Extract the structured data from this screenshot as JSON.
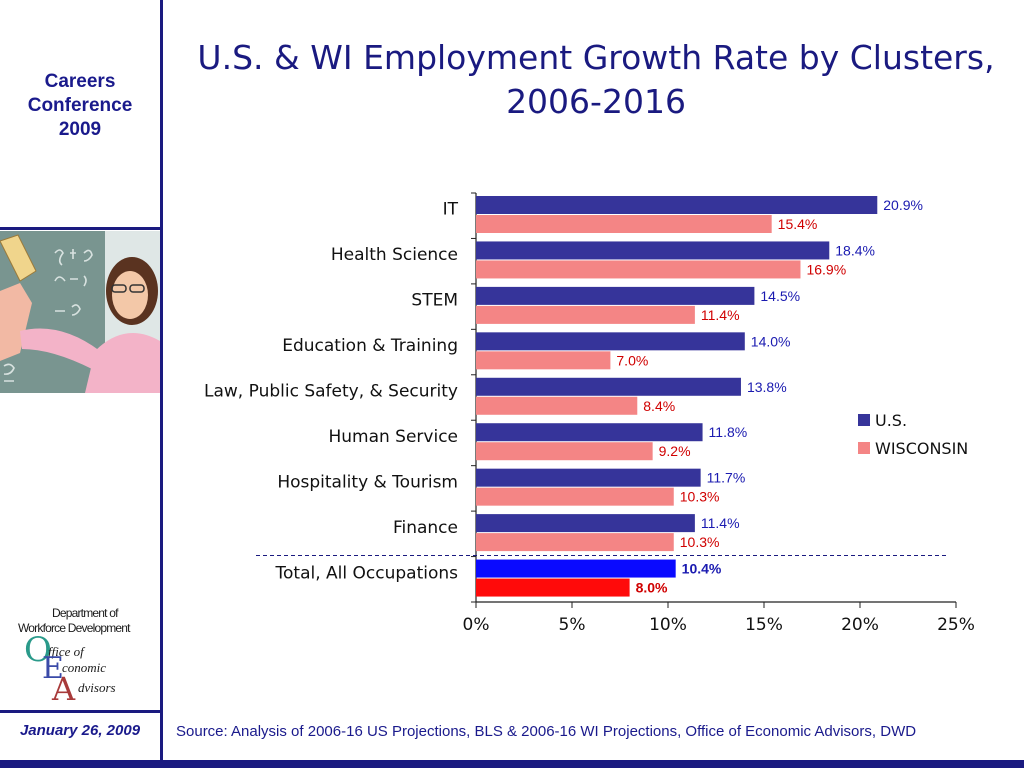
{
  "sidebar": {
    "conference_line1": "Careers",
    "conference_line2": "Conference",
    "conference_line3": "2009",
    "logo": {
      "line1": "Department of",
      "line2": "Workforce Development",
      "letters": [
        "O",
        "E",
        "A"
      ],
      "words": [
        "ffice of",
        "conomic",
        "dvisors"
      ]
    },
    "date": "January 26, 2009"
  },
  "header": {
    "title_line1": "U.S. & WI Employment Growth Rate by Clusters,",
    "title_line2": "2006-2016"
  },
  "footer": {
    "source": "Source: Analysis of 2006-16 US Projections, BLS & 2006-16 WI Projections, Office of Economic Advisors, DWD"
  },
  "colors": {
    "us": "#36349a",
    "wi": "#f48585",
    "us_total": "#0a0aff",
    "wi_total": "#ff0a0a",
    "us_label": "#1a1ab0",
    "wi_label": "#d00000",
    "brand": "#1a1a80"
  },
  "chart_data": {
    "type": "bar",
    "orientation": "horizontal",
    "categories": [
      "IT",
      "Health Science",
      "STEM",
      "Education & Training",
      "Law, Public Safety, & Security",
      "Human Service",
      "Hospitality & Tourism",
      "Finance",
      "Total, All Occupations"
    ],
    "series": [
      {
        "name": "U.S.",
        "values": [
          20.9,
          18.4,
          14.5,
          14.0,
          13.8,
          11.8,
          11.7,
          11.4,
          10.4
        ],
        "labels": [
          "20.9%",
          "18.4%",
          "14.5%",
          "14.0%",
          "13.8%",
          "11.8%",
          "11.7%",
          "11.4%",
          "10.4%"
        ]
      },
      {
        "name": "WISCONSIN",
        "values": [
          15.4,
          16.9,
          11.4,
          7.0,
          8.4,
          9.2,
          10.3,
          10.3,
          8.0
        ],
        "labels": [
          "15.4%",
          "16.9%",
          "11.4%",
          "7.0%",
          "8.4%",
          "9.2%",
          "10.3%",
          "10.3%",
          "8.0%"
        ]
      }
    ],
    "xlim": [
      0,
      25
    ],
    "xticks": [
      "0%",
      "5%",
      "10%",
      "15%",
      "20%",
      "25%"
    ],
    "xtick_values": [
      0,
      5,
      10,
      15,
      20,
      25
    ],
    "legend": "right",
    "highlight_category": "Total, All Occupations",
    "divider_before": "Total, All Occupations"
  }
}
